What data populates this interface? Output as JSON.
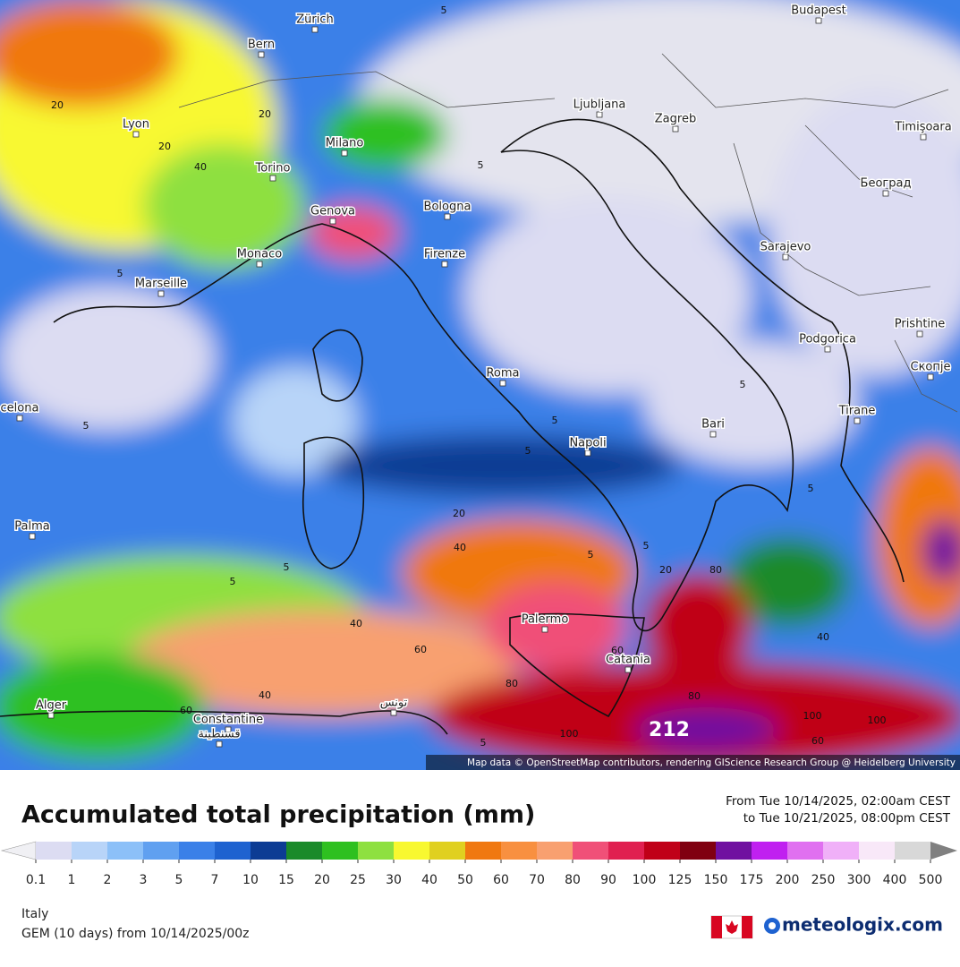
{
  "map": {
    "cities": [
      "Zürich",
      "Bern",
      "Budapest",
      "Lyon",
      "Milano",
      "Ljubljana",
      "Zagreb",
      "Timişoara",
      "Torino",
      "Genova",
      "Bologna",
      "Београд",
      "Monaco",
      "Firenze",
      "Sarajevo",
      "Marseille",
      "Podgorica",
      "Prishtine",
      "Roma",
      "Скопје",
      "celona",
      "Bari",
      "Tirane",
      "Napoli",
      "Palma",
      "Palermo",
      "Catania",
      "Alger",
      "Constantine",
      "قسنطينة",
      "تونس"
    ],
    "contour_labels": [
      5,
      5,
      20,
      20,
      20,
      40,
      5,
      5,
      5,
      5,
      5,
      5,
      5,
      5,
      20,
      40,
      20,
      80,
      40,
      40,
      60,
      60,
      80,
      40,
      60,
      80,
      100,
      100,
      100,
      60,
      5,
      5,
      5
    ],
    "max_label": 212,
    "attribution": "Map data © OpenStreetMap contributors, rendering GIScience Research Group @ Heidelberg University"
  },
  "header": {
    "title": "Accumulated total precipitation (mm)",
    "from": "From Tue 10/14/2025, 02:00am CEST",
    "to": "to Tue 10/21/2025, 08:00pm CEST"
  },
  "legend": {
    "ticks": [
      0.1,
      1,
      2,
      3,
      5,
      7,
      10,
      15,
      20,
      25,
      30,
      40,
      50,
      60,
      70,
      80,
      90,
      100,
      125,
      150,
      175,
      200,
      250,
      300,
      400,
      500
    ],
    "colors": [
      "#dcdcf2",
      "#b8d4f8",
      "#8cc0f8",
      "#60a0f0",
      "#3a80e8",
      "#1e62d0",
      "#0c3c94",
      "#1a8a2a",
      "#2ec020",
      "#8ee040",
      "#f8f830",
      "#e0d020",
      "#f07810",
      "#f89040",
      "#f8a070",
      "#f05078",
      "#e02050",
      "#c00018",
      "#800010",
      "#7010a0",
      "#c020f0",
      "#e070f0",
      "#f0b0f8",
      "#f8e8f8",
      "#d8d8d8"
    ],
    "under_color": "#f0f0f4",
    "over_color": "#808080"
  },
  "footer": {
    "region": "Italy",
    "model": "GEM (10 days) from 10/14/2025/00z",
    "brand": "meteologix.com"
  }
}
